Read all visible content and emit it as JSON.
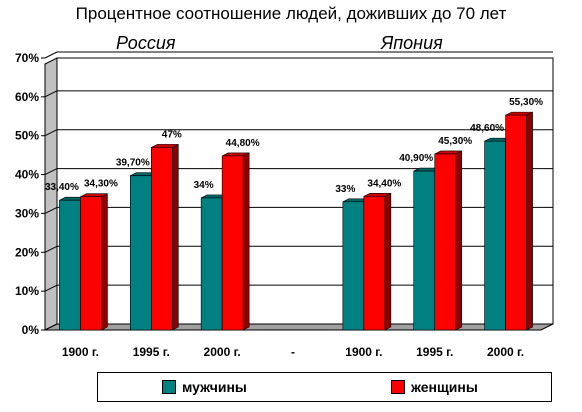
{
  "chart_data": {
    "type": "bar",
    "title": "Процентное  соотношение людей, доживших до 70 лет",
    "groups": [
      {
        "label": "Россия",
        "categories": [
          0,
          1,
          2
        ]
      },
      {
        "label": "Япония",
        "categories": [
          4,
          5,
          6
        ]
      }
    ],
    "categories": [
      "1900 г.",
      "1995 г.",
      "2000 г.",
      "-",
      "1900 г.",
      "1995 г.",
      "2000 г."
    ],
    "series": [
      {
        "name": "мужчины",
        "color": "#008080",
        "values": [
          33.4,
          39.7,
          34,
          null,
          33,
          40.9,
          48.6
        ],
        "labels": [
          "33,40%",
          "39,70%",
          "34%",
          null,
          "33%",
          "40,90%",
          "48,60%"
        ]
      },
      {
        "name": "женщины",
        "color": "#ff0000",
        "values": [
          34.3,
          47,
          44.8,
          null,
          34.4,
          45.3,
          55.3
        ],
        "labels": [
          "34,30%",
          "47%",
          "44,80%",
          null,
          "34,40%",
          "45,30%",
          "55,30%"
        ]
      }
    ],
    "ylim": [
      0,
      70
    ],
    "yticks": [
      "0%",
      "10%",
      "20%",
      "30%",
      "40%",
      "50%",
      "60%",
      "70%"
    ],
    "grid": true,
    "legend_position": "bottom"
  }
}
